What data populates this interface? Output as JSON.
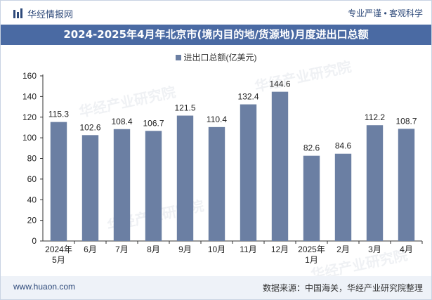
{
  "header": {
    "brand": "华经情报网",
    "tagline": "专业严谨 • 客观科学"
  },
  "title": "2024-2025年4月年北京市(境内目的地/货源地)月度进出口总额",
  "watermark": "华经产业研究院",
  "footer": {
    "website": "www.huaon.com",
    "source": "数据来源：中国海关，华经产业研究院整理"
  },
  "chart_data": {
    "type": "bar",
    "title": "2024-2025年4月年北京市(境内目的地/货源地)月度进出口总额",
    "categories": [
      [
        "2024年",
        "5月"
      ],
      [
        "6月"
      ],
      [
        "7月"
      ],
      [
        "8月"
      ],
      [
        "9月"
      ],
      [
        "10月"
      ],
      [
        "11月"
      ],
      [
        "12月"
      ],
      [
        "2025年",
        "1月"
      ],
      [
        "2月"
      ],
      [
        "3月"
      ],
      [
        "4月"
      ]
    ],
    "series": [
      {
        "name": "进出口总额(亿美元)",
        "color": "#6b7fa3",
        "values": [
          115.3,
          102.6,
          108.4,
          106.7,
          121.5,
          110.4,
          132.4,
          144.6,
          82.6,
          84.6,
          112.2,
          108.7
        ]
      }
    ],
    "ylim": [
      0,
      160
    ],
    "yticks": [
      0,
      20,
      40,
      60,
      80,
      100,
      120,
      140,
      160
    ],
    "xlabel": "",
    "ylabel": "",
    "legend": "top-center",
    "grid": false
  }
}
